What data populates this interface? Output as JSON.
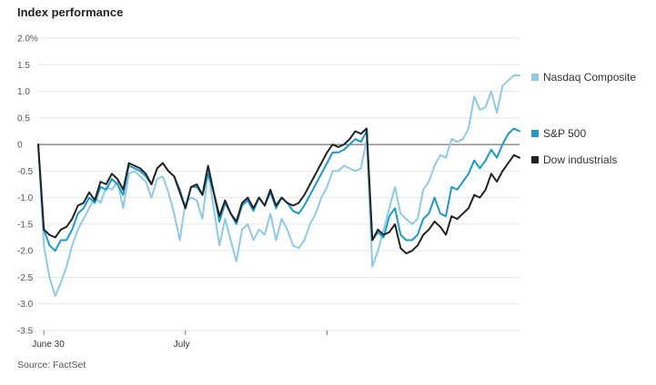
{
  "title": "Index performance",
  "source": "Source: FactSet",
  "chart_data": {
    "type": "line",
    "title": "Index performance",
    "ylim": [
      -3.5,
      2.0
    ],
    "y_ticks": [
      {
        "value": 2.0,
        "label": "2.0%"
      },
      {
        "value": 1.5,
        "label": "1.5"
      },
      {
        "value": 1.0,
        "label": "1.0"
      },
      {
        "value": 0.5,
        "label": "0.5"
      },
      {
        "value": 0,
        "label": "0"
      },
      {
        "value": -0.5,
        "label": "-0.5"
      },
      {
        "value": -1.0,
        "label": "-1.0"
      },
      {
        "value": -1.5,
        "label": "-1.5"
      },
      {
        "value": -2.0,
        "label": "-2.0"
      },
      {
        "value": -2.5,
        "label": "-2.5"
      },
      {
        "value": -3.0,
        "label": "-3.0"
      },
      {
        "value": -3.5,
        "label": "-3.5"
      }
    ],
    "x_ticks": [
      {
        "label": "June 30",
        "index": 1
      },
      {
        "label": "July",
        "index": 26
      },
      {
        "label": "",
        "index": 51
      }
    ],
    "grid": true,
    "legend": "right",
    "series": [
      {
        "name": "Nasdaq Composite",
        "color": "#8ecae6",
        "values": [
          0,
          -1.9,
          -2.5,
          -2.85,
          -2.6,
          -2.3,
          -1.9,
          -1.6,
          -1.4,
          -1.2,
          -1.0,
          -1.1,
          -0.8,
          -0.85,
          -0.7,
          -1.2,
          -0.55,
          -0.5,
          -0.6,
          -0.7,
          -1.0,
          -0.65,
          -0.6,
          -0.9,
          -1.3,
          -1.8,
          -1.1,
          -1.0,
          -1.05,
          -1.4,
          -0.5,
          -1.2,
          -1.9,
          -1.4,
          -1.8,
          -2.2,
          -1.6,
          -1.5,
          -1.8,
          -1.6,
          -1.7,
          -1.3,
          -1.8,
          -1.4,
          -1.6,
          -1.9,
          -1.95,
          -1.8,
          -1.5,
          -1.3,
          -1.0,
          -0.8,
          -0.5,
          -0.5,
          -0.4,
          -0.45,
          -0.5,
          -0.45,
          0.1,
          -2.3,
          -2.0,
          -1.6,
          -1.2,
          -0.8,
          -1.3,
          -1.4,
          -1.5,
          -1.4,
          -0.85,
          -0.7,
          -0.4,
          -0.2,
          -0.25,
          0.1,
          0.05,
          0.1,
          0.3,
          0.9,
          0.65,
          0.7,
          1.0,
          0.6,
          1.1,
          1.2,
          1.3,
          1.3
        ]
      },
      {
        "name": "S&P 500",
        "color": "#1a9ac9",
        "values": [
          0,
          -1.6,
          -1.9,
          -2.0,
          -1.8,
          -1.8,
          -1.6,
          -1.3,
          -1.2,
          -1.0,
          -1.1,
          -0.8,
          -0.85,
          -0.65,
          -0.75,
          -0.95,
          -0.4,
          -0.45,
          -0.5,
          -0.6,
          -0.75,
          -0.45,
          -0.35,
          -0.5,
          -0.6,
          -0.85,
          -1.2,
          -0.8,
          -0.8,
          -0.95,
          -0.55,
          -0.9,
          -1.45,
          -1.1,
          -1.3,
          -1.5,
          -1.15,
          -1.05,
          -1.25,
          -1.0,
          -1.15,
          -0.9,
          -1.2,
          -1.0,
          -1.1,
          -1.25,
          -1.3,
          -1.15,
          -0.95,
          -0.75,
          -0.55,
          -0.35,
          -0.15,
          -0.15,
          -0.1,
          0.0,
          0.1,
          0.05,
          0.25,
          -1.8,
          -1.65,
          -1.75,
          -1.35,
          -1.2,
          -1.7,
          -1.8,
          -1.8,
          -1.7,
          -1.4,
          -1.3,
          -1.0,
          -1.3,
          -1.35,
          -0.8,
          -0.85,
          -0.7,
          -0.55,
          -0.3,
          -0.45,
          -0.3,
          -0.1,
          -0.25,
          0.0,
          0.2,
          0.3,
          0.25
        ]
      },
      {
        "name": "Dow industrials",
        "color": "#222222",
        "values": [
          0,
          -1.6,
          -1.7,
          -1.75,
          -1.6,
          -1.55,
          -1.4,
          -1.15,
          -1.1,
          -0.9,
          -1.05,
          -0.7,
          -0.75,
          -0.55,
          -0.65,
          -0.85,
          -0.35,
          -0.4,
          -0.45,
          -0.55,
          -0.75,
          -0.45,
          -0.35,
          -0.5,
          -0.6,
          -0.9,
          -1.2,
          -0.8,
          -0.75,
          -0.95,
          -0.4,
          -0.9,
          -1.35,
          -1.05,
          -1.3,
          -1.45,
          -1.1,
          -1.0,
          -1.2,
          -1.0,
          -1.15,
          -0.85,
          -1.15,
          -1.0,
          -1.1,
          -1.15,
          -1.1,
          -0.95,
          -0.75,
          -0.55,
          -0.35,
          -0.15,
          0.0,
          -0.05,
          0.0,
          0.1,
          0.25,
          0.2,
          0.3,
          -1.8,
          -1.6,
          -1.7,
          -1.65,
          -1.5,
          -1.95,
          -2.05,
          -2.0,
          -1.9,
          -1.7,
          -1.6,
          -1.45,
          -1.55,
          -1.7,
          -1.35,
          -1.4,
          -1.3,
          -1.2,
          -0.95,
          -1.0,
          -0.85,
          -0.55,
          -0.7,
          -0.5,
          -0.35,
          -0.2,
          -0.25
        ]
      }
    ]
  }
}
